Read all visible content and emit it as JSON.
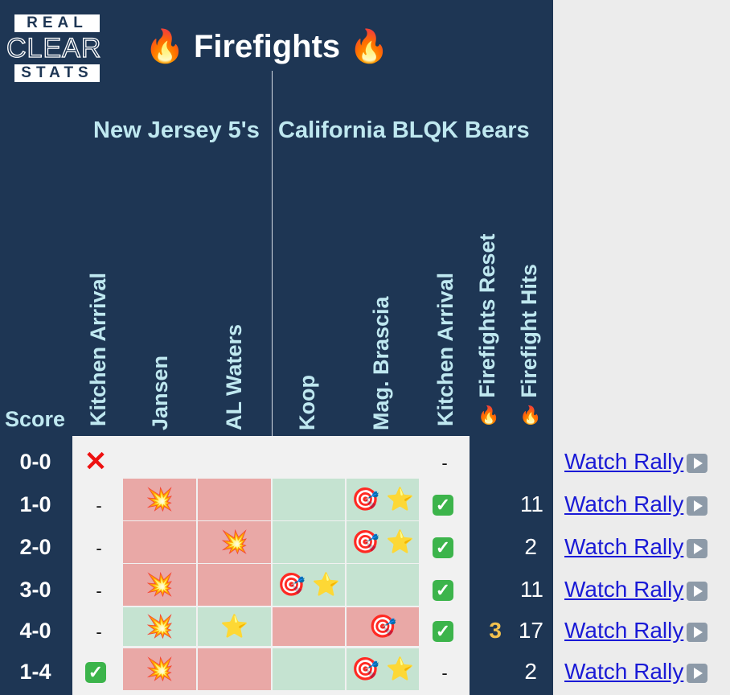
{
  "logo": {
    "top": "REAL",
    "middle": "CLEAR",
    "bottom": "STATS"
  },
  "title": {
    "icon_left": "🔥",
    "text": "Firefights",
    "icon_right": "🔥"
  },
  "teams": {
    "team1": "New Jersey 5's",
    "team2": "California BLQK Bears"
  },
  "columns": {
    "score": "Score",
    "kitchen1": "Kitchen Arrival",
    "p1": "Jansen",
    "p2": "AL Waters",
    "p3": "Koop",
    "p4": "Mag. Brascia",
    "kitchen2": "Kitchen Arrival",
    "resets": "Firefights Reset",
    "hits": "Firefight Hits",
    "fire_icon": "🔥"
  },
  "icons": {
    "explosion": "💥",
    "target": "🎯",
    "star": "⭐",
    "check": "✓",
    "cross": "✕",
    "play": "play-icon"
  },
  "colors": {
    "panel": "#1e3654",
    "red_cell": "#e9a8a6",
    "green_cell": "#c5e3d1",
    "reset": "#f2c14e",
    "link": "#1a1ad6"
  },
  "rows": [
    {
      "score": "0-0",
      "kitchen1": "cross",
      "kitchen2": "-",
      "reset": "",
      "hits": "",
      "link": "Watch Rally"
    },
    {
      "score": "1-0",
      "kitchen1": "-",
      "kitchen2": "check",
      "reset": "",
      "hits": "11",
      "link": "Watch Rally"
    },
    {
      "score": "2-0",
      "kitchen1": "-",
      "kitchen2": "check",
      "reset": "",
      "hits": "2",
      "link": "Watch Rally"
    },
    {
      "score": "3-0",
      "kitchen1": "-",
      "kitchen2": "check",
      "reset": "",
      "hits": "11",
      "link": "Watch Rally"
    },
    {
      "score": "4-0",
      "kitchen1": "-",
      "kitchen2": "check",
      "reset": "3",
      "hits": "17",
      "link": "Watch Rally"
    },
    {
      "score": "1-4",
      "kitchen1": "check",
      "kitchen2": "-",
      "reset": "",
      "hits": "2",
      "link": "Watch Rally"
    }
  ]
}
